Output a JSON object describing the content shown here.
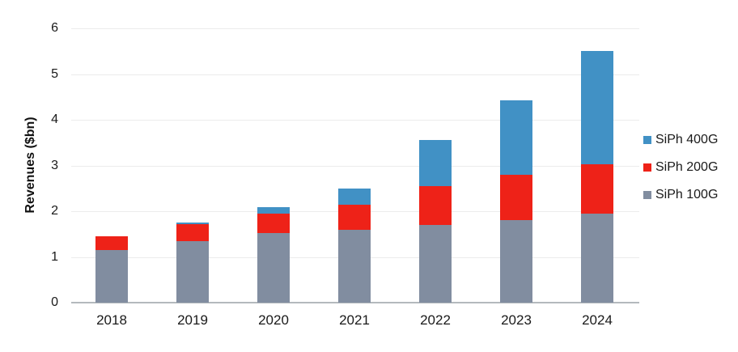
{
  "chart_data": {
    "type": "bar",
    "stacked": true,
    "title": "",
    "xlabel": "",
    "ylabel": "Revenues ($bn)",
    "categories": [
      "2018",
      "2019",
      "2020",
      "2021",
      "2022",
      "2023",
      "2024"
    ],
    "series": [
      {
        "name": "SiPh 100G",
        "color": "#818da0",
        "values": [
          1.15,
          1.35,
          1.53,
          1.6,
          1.7,
          1.8,
          1.94
        ]
      },
      {
        "name": "SiPh 200G",
        "color": "#ee2218",
        "values": [
          0.3,
          0.37,
          0.42,
          0.54,
          0.85,
          1.0,
          1.09
        ]
      },
      {
        "name": "SiPh 400G",
        "color": "#4191c5",
        "values": [
          0.0,
          0.03,
          0.13,
          0.36,
          1.0,
          1.63,
          2.47
        ]
      }
    ],
    "yticks": [
      0,
      1,
      2,
      3,
      4,
      5,
      6
    ],
    "ylim": [
      0,
      6
    ],
    "grid": "horizontal",
    "legend_position": "right",
    "legend_order": [
      "SiPh 400G",
      "SiPh 200G",
      "SiPh 100G"
    ]
  },
  "colors": {
    "background": "#ffffff",
    "gridline": "#ececec",
    "axis_line": "#b4b9bd",
    "text": "#1a1a1a"
  }
}
